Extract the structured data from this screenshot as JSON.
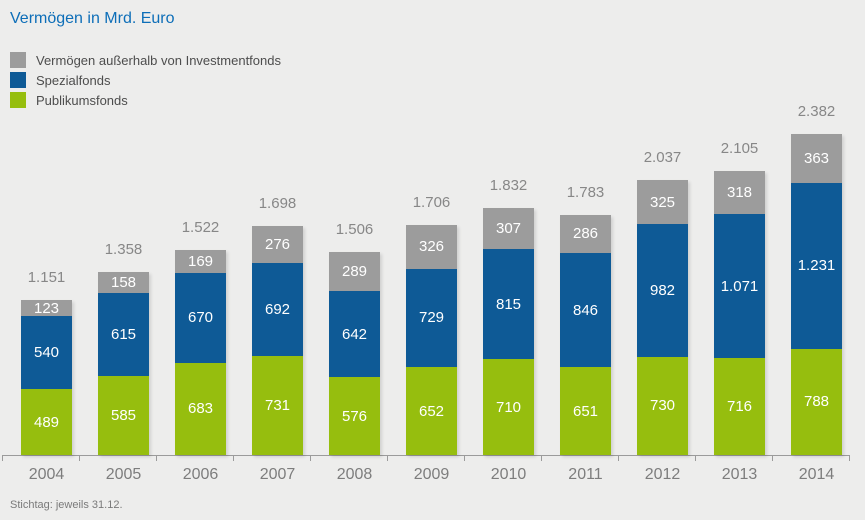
{
  "title": "Vermögen in Mrd. Euro",
  "footnote": "Stichtag: jeweils 31.12.",
  "colors": {
    "background": "#EDEDEC",
    "title_blue": "#0D6EB8",
    "axis_gray": "#9B9B9B",
    "label_gray": "#878787",
    "segment_label": "#FFFFFF"
  },
  "legend": {
    "items": [
      {
        "label": "Vermögen außerhalb von Investmentfonds",
        "color": "#9C9C9C"
      },
      {
        "label": "Spezialfonds",
        "color": "#0E5A96"
      },
      {
        "label": "Publikumsfonds",
        "color": "#96BE0E"
      }
    ]
  },
  "chart_data": {
    "type": "bar",
    "stacked": true,
    "title": "Vermögen in Mrd. Euro",
    "unit": "Mrd. Euro",
    "legend_position": "top-left",
    "grid": false,
    "ylim": [
      0,
      2500
    ],
    "categories": [
      "2004",
      "2005",
      "2006",
      "2007",
      "2008",
      "2009",
      "2010",
      "2011",
      "2012",
      "2013",
      "2014"
    ],
    "series": [
      {
        "name": "Publikumsfonds",
        "color": "#96BE0E",
        "values": [
          489,
          585,
          683,
          731,
          576,
          652,
          710,
          651,
          730,
          716,
          788
        ]
      },
      {
        "name": "Spezialfonds",
        "color": "#0E5A96",
        "values": [
          540,
          615,
          670,
          692,
          642,
          729,
          815,
          846,
          982,
          1071,
          1231
        ]
      },
      {
        "name": "Vermögen außerhalb von Investmentfonds",
        "color": "#9C9C9C",
        "values": [
          123,
          158,
          169,
          276,
          289,
          326,
          307,
          286,
          325,
          318,
          363
        ]
      }
    ],
    "totals": [
      1151,
      1358,
      1522,
      1698,
      1506,
      1706,
      1832,
      1783,
      2037,
      2105,
      2382
    ],
    "number_format": "thousands-separated-by-dot",
    "footnote": "Stichtag: jeweils 31.12."
  }
}
